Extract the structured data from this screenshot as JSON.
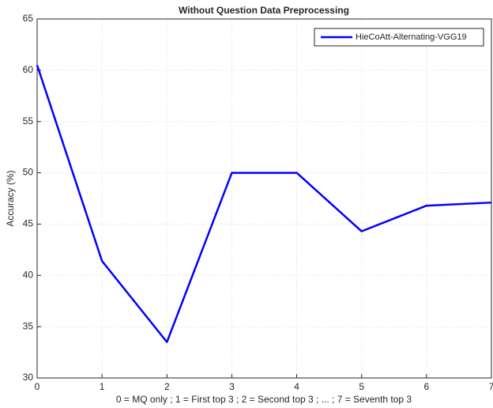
{
  "chart_data": {
    "type": "line",
    "title": "Without Question Data Preprocessing",
    "x_label": "0 = MQ only ; 1 = First top 3 ; 2 = Second top 3 ; ... ; 7 = Seventh top 3",
    "y_label": "Accuracy (%)",
    "x": [
      0,
      1,
      2,
      3,
      4,
      5,
      6,
      7
    ],
    "series": [
      {
        "name": "HieCoAtt-Alternating-VGG19",
        "color": "#0000ff",
        "values": [
          60.5,
          41.4,
          33.5,
          50.0,
          50.0,
          44.3,
          46.8,
          47.1
        ]
      }
    ],
    "xlim": [
      0,
      7
    ],
    "xticks": [
      0,
      1,
      2,
      3,
      4,
      5,
      6,
      7
    ],
    "ylim": [
      30,
      65
    ],
    "yticks": [
      30,
      35,
      40,
      45,
      50,
      55,
      60,
      65
    ],
    "grid": true,
    "legend": "top-right"
  }
}
